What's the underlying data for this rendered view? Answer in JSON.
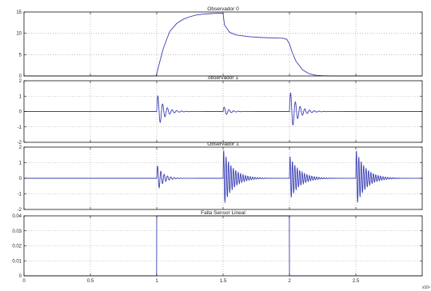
{
  "chart_data": [
    {
      "type": "line",
      "title": "Observador 0",
      "xlim": [
        0,
        3
      ],
      "ylim": [
        0,
        15
      ],
      "yticks": [
        0,
        5,
        10,
        15
      ],
      "ytick_labels": [
        "0",
        "5",
        "10",
        "15"
      ],
      "grid": true,
      "color": "#3b3fb5",
      "series": [
        {
          "x": [
            0,
            0.995,
            1.0,
            1.02,
            1.05,
            1.08,
            1.1,
            1.15,
            1.2,
            1.25,
            1.3,
            1.35,
            1.4,
            1.45,
            1.5,
            1.51,
            1.55,
            1.6,
            1.7,
            1.8,
            1.9,
            1.95,
            1.98,
            2.0,
            2.02,
            2.05,
            2.1,
            2.15,
            2.2,
            2.25,
            2.3,
            2.4,
            2.5,
            3.0
          ],
          "y": [
            0,
            0,
            0.5,
            3.0,
            6.5,
            9.0,
            10.5,
            12.3,
            13.3,
            13.9,
            14.3,
            14.5,
            14.6,
            14.7,
            14.7,
            12.0,
            10.2,
            9.6,
            9.2,
            9.0,
            8.9,
            8.85,
            8.6,
            7.5,
            5.6,
            3.4,
            1.4,
            0.5,
            0.15,
            0.05,
            0,
            0,
            0,
            0
          ]
        }
      ]
    },
    {
      "type": "line",
      "title": "observador 1",
      "xlim": [
        0,
        3
      ],
      "ylim": [
        -2,
        2
      ],
      "yticks": [
        -2,
        -1,
        0,
        1,
        2
      ],
      "ytick_labels": [
        "-2",
        "-1",
        "0",
        "1",
        "2"
      ],
      "grid": true,
      "color": "#3b3fb5",
      "bursts": [
        {
          "t0": 1.0,
          "amp": 1.2,
          "freq": 28,
          "decay": 20
        },
        {
          "t0": 1.5,
          "amp": 0.35,
          "freq": 28,
          "decay": 25
        },
        {
          "t0": 2.0,
          "amp": 1.4,
          "freq": 28,
          "decay": 18
        }
      ]
    },
    {
      "type": "line",
      "title": "Observador 1",
      "xlim": [
        0,
        3
      ],
      "ylim": [
        -2,
        2
      ],
      "yticks": [
        -2,
        -1,
        0,
        1,
        2
      ],
      "ytick_labels": [
        "-2",
        "-1",
        "0",
        "1",
        "2"
      ],
      "grid": true,
      "color": "#3b3fb5",
      "bursts": [
        {
          "t0": 1.0,
          "amp": 0.9,
          "freq": 40,
          "decay": 22
        },
        {
          "t0": 1.5,
          "amp": 1.9,
          "freq": 55,
          "decay": 14
        },
        {
          "t0": 2.0,
          "amp": 1.5,
          "freq": 55,
          "decay": 14
        },
        {
          "t0": 2.5,
          "amp": 1.9,
          "freq": 55,
          "decay": 14
        }
      ]
    },
    {
      "type": "line",
      "title": "Falla Sensor Lineal",
      "xlim": [
        0,
        3
      ],
      "ylim": [
        0,
        0.04
      ],
      "yticks": [
        0,
        0.01,
        0.02,
        0.03,
        0.04
      ],
      "ytick_labels": [
        "0",
        "0.01",
        "0.02",
        "0.03",
        "0.04"
      ],
      "grid": true,
      "color": "#3b3fb5",
      "series": [
        {
          "x": [
            0,
            0.999,
            1.0,
            1.999,
            2.0,
            3.0
          ],
          "y": [
            0,
            0,
            0.04,
            0.04,
            0,
            0
          ]
        }
      ]
    }
  ],
  "x_axis": {
    "xticks": [
      0,
      0.5,
      1,
      1.5,
      2,
      2.5
    ],
    "xtick_labels": [
      "0",
      "0.5",
      "1",
      "1.5",
      "2",
      "2.5"
    ],
    "exponent_label": "x10⁴"
  }
}
